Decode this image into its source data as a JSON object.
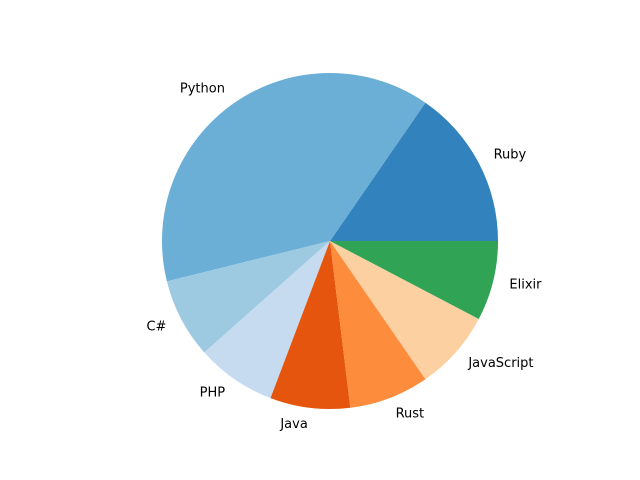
{
  "chart_data": {
    "type": "pie",
    "title": "",
    "start_angle_deg": 0,
    "direction": "counterclockwise",
    "slices": [
      {
        "label": "Ruby",
        "value": 16.67,
        "color": "#3182bd"
      },
      {
        "label": "Python",
        "value": 41.67,
        "color": "#6baed6"
      },
      {
        "label": "C#",
        "value": 8.33,
        "color": "#9ecae1"
      },
      {
        "label": "PHP",
        "value": 8.33,
        "color": "#c6dbef"
      },
      {
        "label": "Java",
        "value": 8.33,
        "color": "#e6550d"
      },
      {
        "label": "Rust",
        "value": 8.33,
        "color": "#fd8d3c"
      },
      {
        "label": "JavaScript",
        "value": 8.33,
        "color": "#fdd0a2"
      },
      {
        "label": "Elixir",
        "value": 8.33,
        "color": "#31a354"
      }
    ]
  }
}
